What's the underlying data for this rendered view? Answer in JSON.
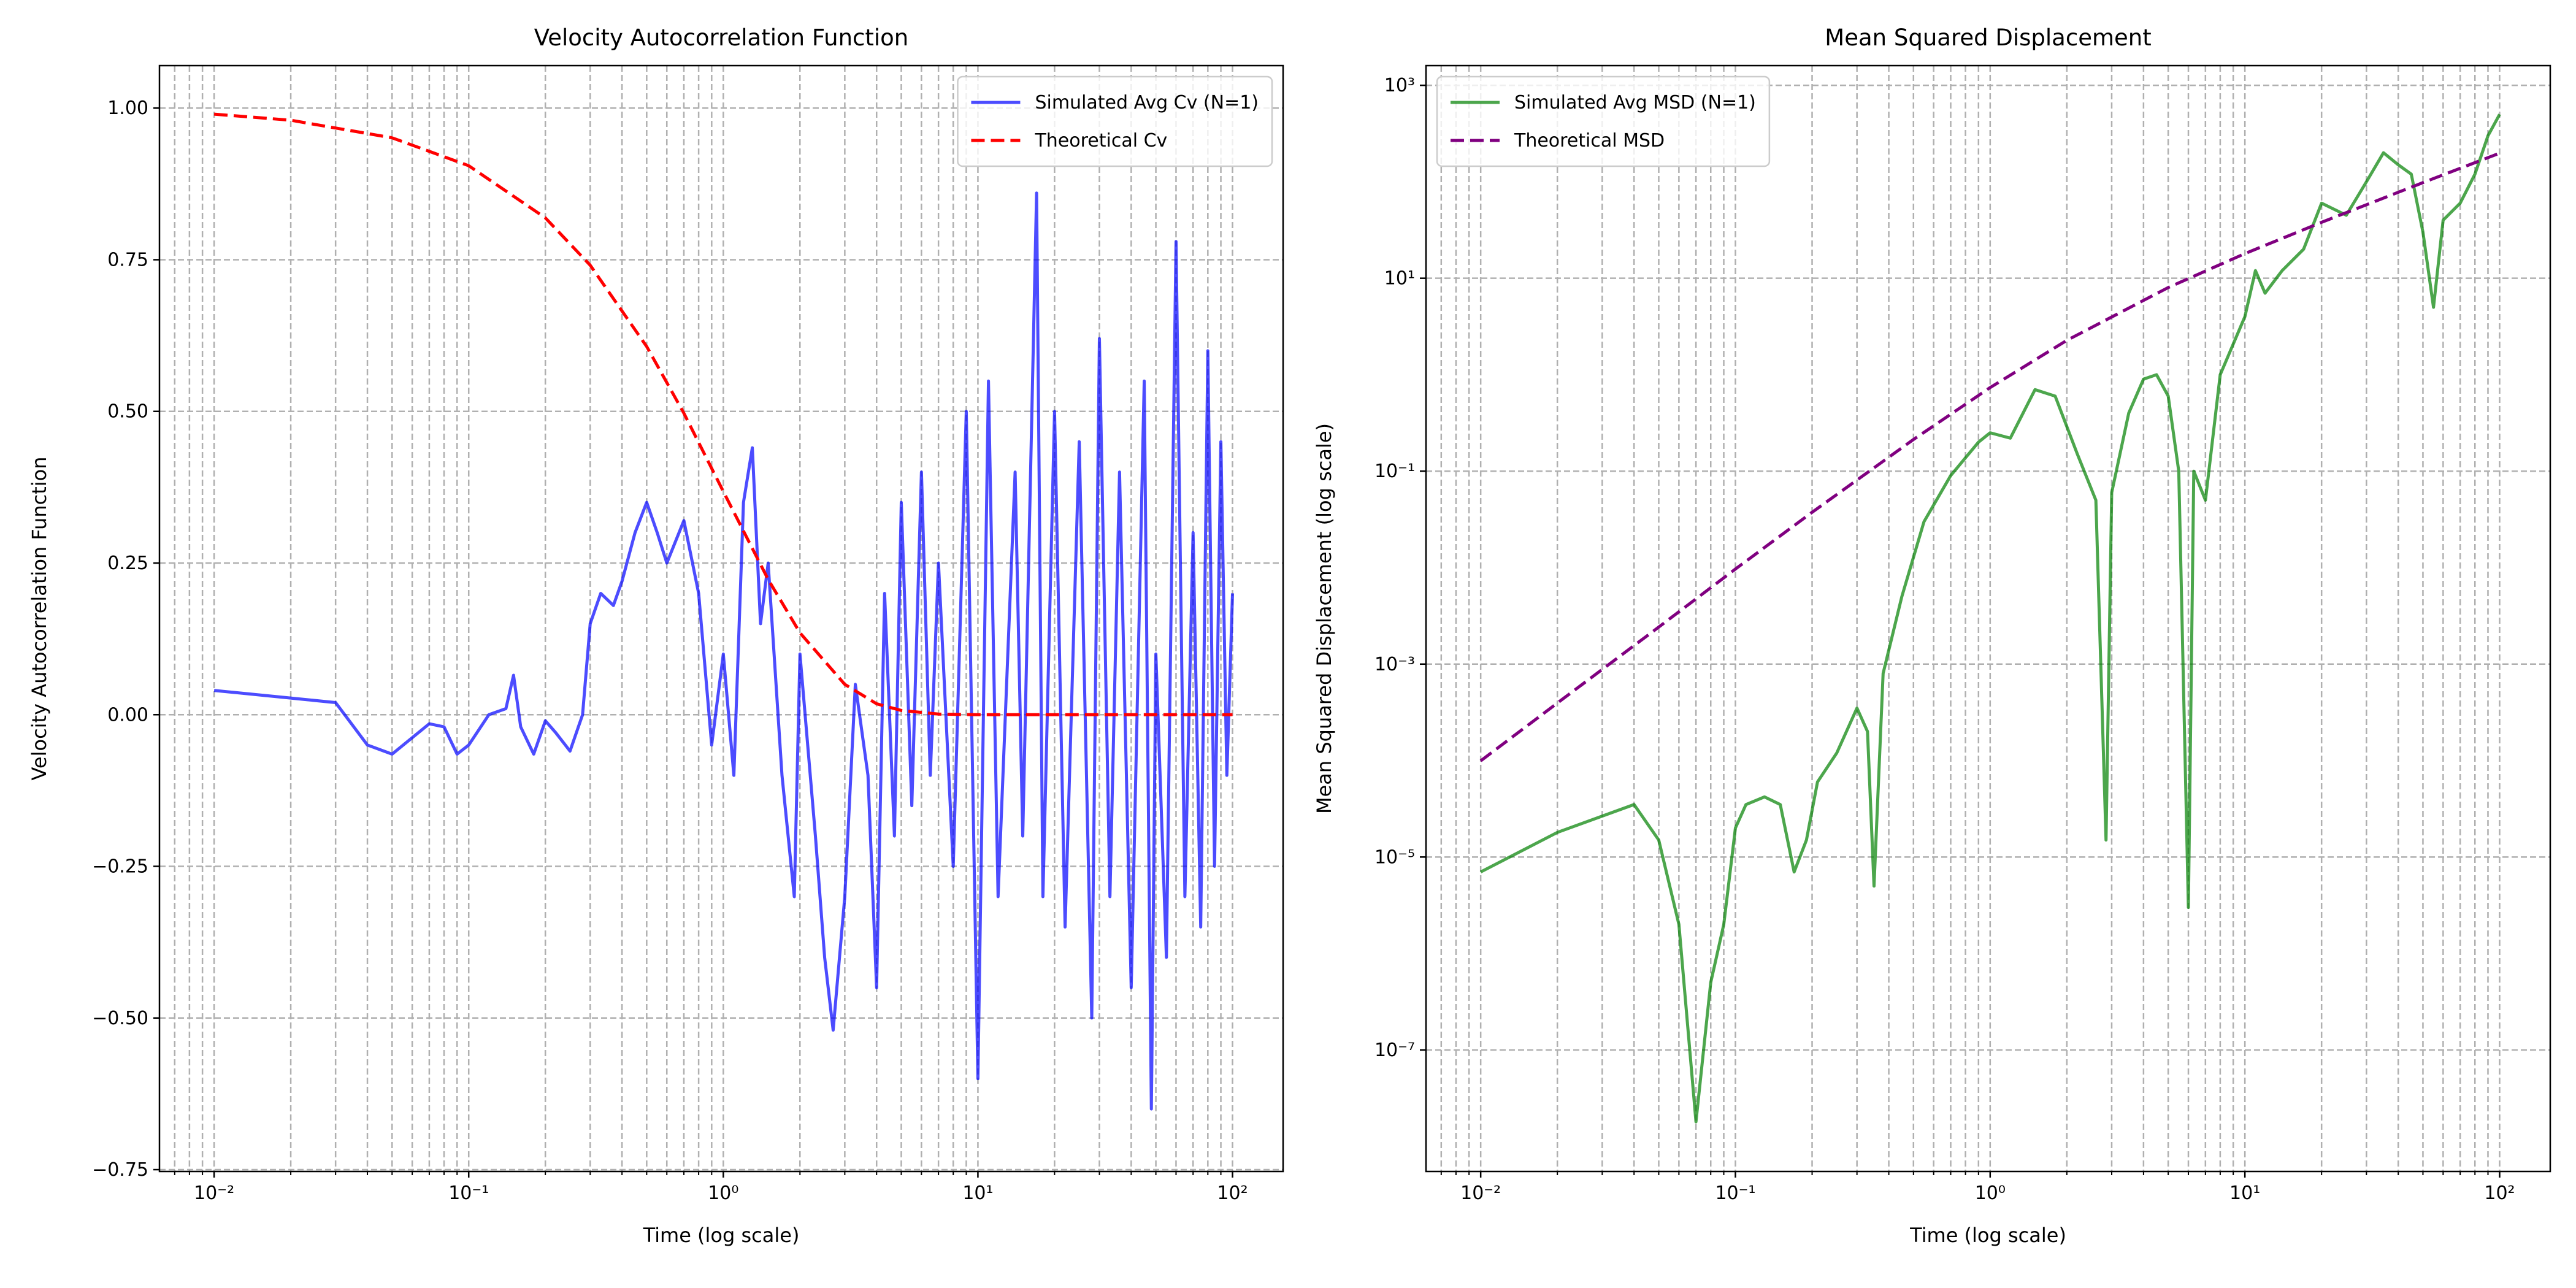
{
  "chart_data": [
    {
      "type": "line",
      "title": "Velocity Autocorrelation Function",
      "xlabel": "Time (log scale)",
      "ylabel": "Velocity Autocorrelation Function",
      "xscale": "log",
      "yscale": "linear",
      "xlim": [
        0.0061,
        158
      ],
      "ylim": [
        -0.753,
        1.07
      ],
      "xticks": [
        {
          "value": 0.01,
          "label": "10⁻²"
        },
        {
          "value": 0.1,
          "label": "10⁻¹"
        },
        {
          "value": 1,
          "label": "10⁰"
        },
        {
          "value": 10,
          "label": "10¹"
        },
        {
          "value": 100,
          "label": "10²"
        }
      ],
      "yticks": [
        {
          "value": -0.75,
          "label": "−0.75"
        },
        {
          "value": -0.5,
          "label": "−0.50"
        },
        {
          "value": -0.25,
          "label": "−0.25"
        },
        {
          "value": 0,
          "label": "0.00"
        },
        0.25,
        {
          "value": 0.5,
          "label": "0.50"
        },
        0.75,
        {
          "value": 1,
          "label": "1.00"
        }
      ],
      "grid": true,
      "minor_grid": "x",
      "legend": "upper right",
      "series": [
        {
          "name": "Simulated Avg Cv (N=1)",
          "color": "blue",
          "alpha": 0.7,
          "linestyle": "-",
          "x": [
            0.01,
            0.03,
            0.04,
            0.05,
            0.07,
            0.08,
            0.09,
            0.1,
            0.12,
            0.14,
            0.15,
            0.16,
            0.18,
            0.2,
            0.22,
            0.25,
            0.28,
            0.3,
            0.33,
            0.37,
            0.4,
            0.45,
            0.5,
            0.55,
            0.6,
            0.7,
            0.8,
            0.9,
            1.0,
            1.1,
            1.2,
            1.3,
            1.4,
            1.5,
            1.7,
            1.9,
            2.0,
            2.3,
            2.5,
            2.7,
            3.0,
            3.3,
            3.7,
            4.0,
            4.3,
            4.7,
            5.0,
            5.5,
            6,
            6.5,
            7,
            8,
            9,
            10,
            11,
            12,
            14,
            15,
            17,
            18,
            20,
            22,
            25,
            28,
            30,
            33,
            36,
            40,
            45,
            48,
            50,
            55,
            60,
            65,
            70,
            75,
            80,
            85,
            90,
            95,
            100
          ],
          "values": [
            0.04,
            0.02,
            -0.05,
            -0.065,
            -0.015,
            -0.02,
            -0.065,
            -0.05,
            0.0,
            0.01,
            0.065,
            -0.02,
            -0.065,
            -0.01,
            -0.03,
            -0.06,
            0.0,
            0.15,
            0.2,
            0.18,
            0.22,
            0.3,
            0.35,
            0.3,
            0.25,
            0.32,
            0.2,
            -0.05,
            0.1,
            -0.1,
            0.35,
            0.44,
            0.15,
            0.25,
            -0.1,
            -0.3,
            0.1,
            -0.2,
            -0.4,
            -0.52,
            -0.3,
            0.05,
            -0.1,
            -0.45,
            0.2,
            -0.2,
            0.35,
            -0.15,
            0.4,
            -0.1,
            0.25,
            -0.25,
            0.5,
            -0.6,
            0.55,
            -0.3,
            0.4,
            -0.2,
            0.86,
            -0.3,
            0.5,
            -0.35,
            0.45,
            -0.5,
            0.62,
            -0.3,
            0.4,
            -0.45,
            0.55,
            -0.65,
            0.1,
            -0.4,
            0.78,
            -0.3,
            0.3,
            -0.35,
            0.6,
            -0.25,
            0.45,
            -0.1,
            0.2
          ]
        },
        {
          "name": "Theoretical Cv",
          "color": "red",
          "alpha": 1,
          "linestyle": "--",
          "x": [
            0.01,
            0.02,
            0.05,
            0.1,
            0.2,
            0.3,
            0.5,
            0.7,
            1,
            1.5,
            2,
            3,
            4,
            5,
            7,
            10,
            20,
            50,
            100
          ],
          "values": [
            0.99,
            0.98,
            0.951,
            0.905,
            0.819,
            0.741,
            0.607,
            0.497,
            0.368,
            0.223,
            0.135,
            0.05,
            0.018,
            0.007,
            0.001,
            0,
            0,
            0,
            0
          ]
        }
      ]
    },
    {
      "type": "line",
      "title": "Mean Squared Displacement",
      "xlabel": "Time (log scale)",
      "ylabel": "Mean Squared Displacement (log scale)",
      "xscale": "log",
      "yscale": "log",
      "xlim": [
        0.0061,
        158
      ],
      "ylim": [
        5.5e-09,
        1600
      ],
      "xticks": [
        {
          "value": 0.01,
          "label": "10⁻²"
        },
        {
          "value": 0.1,
          "label": "10⁻¹"
        },
        {
          "value": 1,
          "label": "10⁰"
        },
        {
          "value": 10,
          "label": "10¹"
        },
        {
          "value": 100,
          "label": "10²"
        }
      ],
      "yticks": [
        {
          "value": 1e-07,
          "label": "10⁻⁷"
        },
        {
          "value": 1e-05,
          "label": "10⁻⁵"
        },
        {
          "value": 0.001,
          "label": "10⁻³"
        },
        {
          "value": 0.1,
          "label": "10⁻¹"
        },
        {
          "value": 10,
          "label": "10¹"
        },
        {
          "value": 1000,
          "label": "10³"
        }
      ],
      "grid": true,
      "minor_grid": "x",
      "legend": "upper left",
      "series": [
        {
          "name": "Simulated Avg MSD (N=1)",
          "color": "green",
          "alpha": 0.7,
          "linestyle": "-",
          "x": [
            0.01,
            0.02,
            0.04,
            0.05,
            0.06,
            0.07,
            0.08,
            0.09,
            0.1,
            0.11,
            0.13,
            0.15,
            0.17,
            0.19,
            0.21,
            0.25,
            0.3,
            0.33,
            0.35,
            0.38,
            0.45,
            0.55,
            0.7,
            0.9,
            1.0,
            1.2,
            1.5,
            1.8,
            2.2,
            2.6,
            2.85,
            3.0,
            3.5,
            4.0,
            4.5,
            5,
            5.5,
            6.0,
            6.3,
            7,
            8,
            10,
            11,
            12,
            14,
            17,
            20,
            25,
            30,
            35,
            40,
            45,
            50,
            55,
            60,
            70,
            80,
            90,
            100
          ],
          "values": [
            7e-06,
            1.8e-05,
            3.5e-05,
            1.5e-05,
            2e-06,
            1.8e-08,
            5e-07,
            2e-06,
            2e-05,
            3.5e-05,
            4.2e-05,
            3.5e-05,
            7e-06,
            1.5e-05,
            6e-05,
            0.00012,
            0.00035,
            0.0002,
            5e-06,
            0.0008,
            0.005,
            0.03,
            0.09,
            0.2,
            0.25,
            0.22,
            0.7,
            0.6,
            0.15,
            0.05,
            1.5e-05,
            0.06,
            0.4,
            0.9,
            1.0,
            0.6,
            0.1,
            3e-06,
            0.1,
            0.05,
            1.0,
            4,
            12,
            7,
            12,
            20,
            60,
            45,
            100,
            200,
            150,
            120,
            30,
            5,
            40,
            60,
            120,
            300,
            500
          ]
        },
        {
          "name": "Theoretical MSD",
          "color": "purple",
          "alpha": 1,
          "linestyle": "--",
          "x": [
            0.01,
            0.02,
            0.05,
            0.1,
            0.2,
            0.5,
            1,
            2,
            5,
            10,
            20,
            50,
            100
          ],
          "values": [
            9.93e-05,
            0.000395,
            0.00242,
            0.00967,
            0.0375,
            0.213,
            0.736,
            2.27,
            8.01,
            18.0,
            38,
            98,
            198
          ]
        }
      ]
    }
  ]
}
